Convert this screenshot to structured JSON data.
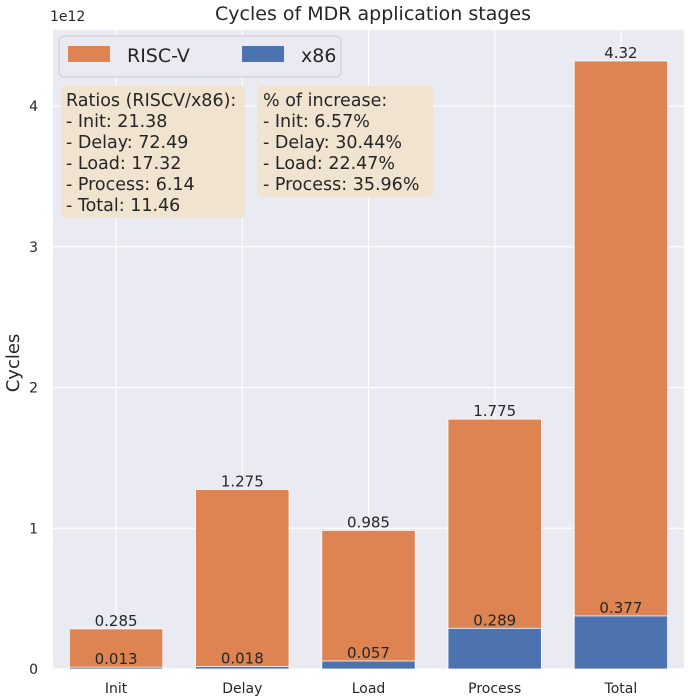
{
  "chart_data": {
    "type": "bar",
    "title": "Cycles of MDR application stages",
    "ylabel": "Cycles",
    "xlabel": "",
    "offset_label": "1e12",
    "categories": [
      "Init",
      "Delay",
      "Load",
      "Process",
      "Total"
    ],
    "ylim": [
      0,
      4.54
    ],
    "yticks": [
      0,
      1,
      2,
      3,
      4
    ],
    "ytick_labels": [
      "0",
      "1",
      "2",
      "3",
      "4"
    ],
    "unit_multiplier": 1000000000000.0,
    "grid": true,
    "legend_position": "top-left",
    "series": [
      {
        "name": "RISC-V",
        "color": "#dd8452",
        "values": [
          0.285,
          1.275,
          0.985,
          1.775,
          4.32
        ],
        "labels": [
          "0.285",
          "1.275",
          "0.985",
          "1.775",
          "4.32"
        ]
      },
      {
        "name": "x86",
        "color": "#4c72b0",
        "values": [
          0.013,
          0.018,
          0.057,
          0.289,
          0.377
        ],
        "labels": [
          "0.013",
          "0.018",
          "0.057",
          "0.289",
          "0.377"
        ]
      }
    ],
    "annotations": [
      {
        "lines": [
          "Ratios (RISCV/x86):",
          " - Init: 21.38",
          " - Delay: 72.49",
          " - Load: 17.32",
          " - Process: 6.14",
          " - Total: 11.46"
        ]
      },
      {
        "lines": [
          "% of increase:",
          " - Init: 6.57%",
          " - Delay: 30.44%",
          " - Load: 22.47%",
          " - Process: 35.96%"
        ]
      }
    ]
  },
  "colors": {
    "plot_background": "#eaeaf2",
    "grid": "#ffffff",
    "annotation_box": "#f0e3d0"
  }
}
